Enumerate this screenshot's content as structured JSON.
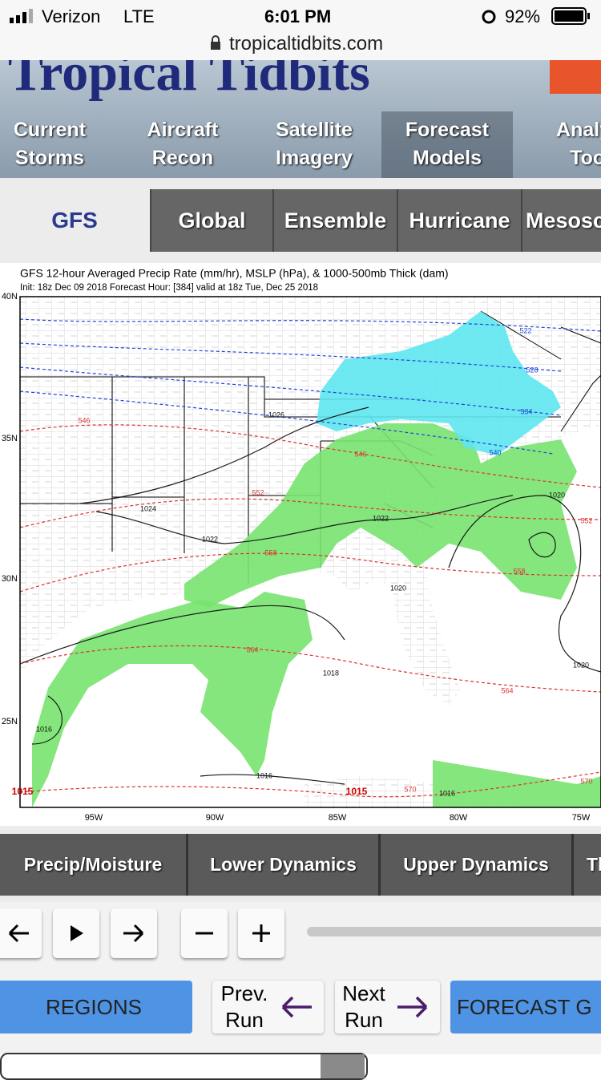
{
  "status_bar": {
    "carrier": "Verizon",
    "network": "LTE",
    "time": "6:01 PM",
    "battery": "92%",
    "url": "tropicaltidbits.com"
  },
  "site": {
    "logo": "Tropical Tidbits"
  },
  "nav": [
    "Current Storms",
    "Aircraft Recon",
    "Satellite Imagery",
    "Forecast Models",
    "Analys Tools"
  ],
  "model_tabs": [
    "GFS",
    "Global",
    "Ensemble",
    "Hurricane",
    "Mesosc"
  ],
  "map": {
    "title": "GFS 12-hour Averaged Precip Rate (mm/hr), MSLP (hPa), & 1000-500mb Thick (dam)",
    "subtitle": "Init: 18z Dec 09 2018   Forecast Hour: [384]   valid at 18z Tue, Dec 25 2018",
    "lon_labels": [
      "95W",
      "90W",
      "85W",
      "80W",
      "75W"
    ],
    "lat_labels": [
      "40N",
      "35N",
      "30N",
      "25N"
    ],
    "contour_labels": [
      "1026",
      "1024",
      "1022",
      "1022",
      "1020",
      "1020",
      "1020",
      "1018",
      "1016",
      "1016",
      "1016",
      "1015",
      "1015",
      "546",
      "546",
      "552",
      "552",
      "558",
      "558",
      "564",
      "564",
      "570",
      "570",
      "522",
      "528",
      "534",
      "540"
    ]
  },
  "category_tabs": [
    "Precip/Moisture",
    "Lower Dynamics",
    "Upper Dynamics",
    "Th"
  ],
  "buttons": {
    "regions": "REGIONS",
    "prev_run": "Prev. Run",
    "next_run": "Next Run",
    "forecast": "FORECAST G"
  }
}
